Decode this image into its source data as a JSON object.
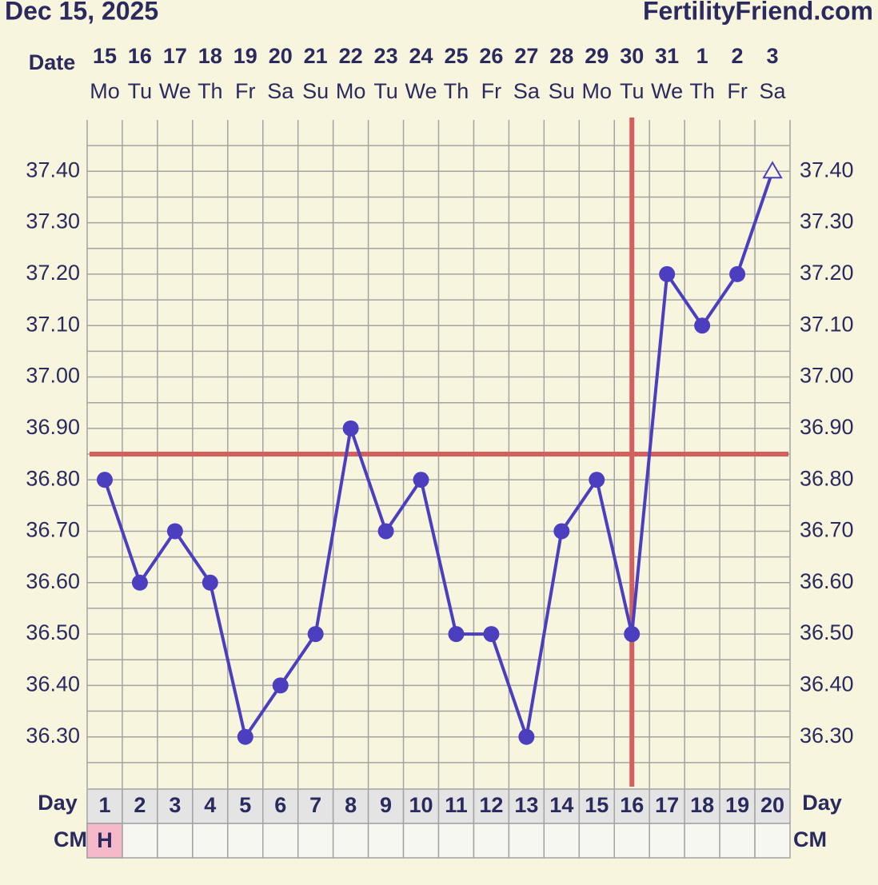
{
  "chart_data": {
    "type": "line",
    "title": "Dec 15, 2025",
    "site": "FertilityFriend.com",
    "date_label": "Date",
    "categories": [
      "15",
      "16",
      "17",
      "18",
      "19",
      "20",
      "21",
      "22",
      "23",
      "24",
      "25",
      "26",
      "27",
      "28",
      "29",
      "30",
      "31",
      "1",
      "2",
      "3"
    ],
    "weekdays": [
      "Mo",
      "Tu",
      "We",
      "Th",
      "Fr",
      "Sa",
      "Su",
      "Mo",
      "Tu",
      "We",
      "Th",
      "Fr",
      "Sa",
      "Su",
      "Mo",
      "Tu",
      "We",
      "Th",
      "Fr",
      "Sa"
    ],
    "day_label": "Day",
    "days": [
      1,
      2,
      3,
      4,
      5,
      6,
      7,
      8,
      9,
      10,
      11,
      12,
      13,
      14,
      15,
      16,
      17,
      18,
      19,
      20
    ],
    "cm_label": "CM",
    "cm": [
      {
        "day": 1,
        "value": "H",
        "color": "#f4b8c8"
      }
    ],
    "series": [
      {
        "color": "#4b3fc0",
        "values": [
          36.8,
          36.6,
          36.7,
          36.6,
          36.3,
          36.4,
          36.5,
          36.9,
          36.7,
          36.8,
          36.5,
          36.5,
          36.3,
          36.7,
          36.8,
          36.5,
          37.2,
          37.1,
          37.2,
          37.4
        ],
        "open_marker_days": [
          20
        ]
      }
    ],
    "ylim": [
      36.2,
      37.5
    ],
    "yticks": [
      {
        "value": 36.3,
        "label": "36.30"
      },
      {
        "value": 36.4,
        "label": "36.40"
      },
      {
        "value": 36.5,
        "label": "36.50"
      },
      {
        "value": 36.6,
        "label": "36.60"
      },
      {
        "value": 36.7,
        "label": "36.70"
      },
      {
        "value": 36.8,
        "label": "36.80"
      },
      {
        "value": 36.9,
        "label": "36.90"
      },
      {
        "value": 37.0,
        "label": "37.00"
      },
      {
        "value": 37.1,
        "label": "37.10"
      },
      {
        "value": 37.2,
        "label": "37.20"
      },
      {
        "value": 37.3,
        "label": "37.30"
      },
      {
        "value": 37.4,
        "label": "37.40"
      }
    ],
    "minor_yticks": [
      36.25,
      36.35,
      36.45,
      36.55,
      36.65,
      36.75,
      36.85,
      36.95,
      37.05,
      37.15,
      37.25,
      37.35,
      37.45
    ],
    "grid": true,
    "coverline": {
      "value": 36.85,
      "color": "#d45f5f"
    },
    "ovulation": {
      "day": 16,
      "color": "#d45f5f"
    }
  }
}
